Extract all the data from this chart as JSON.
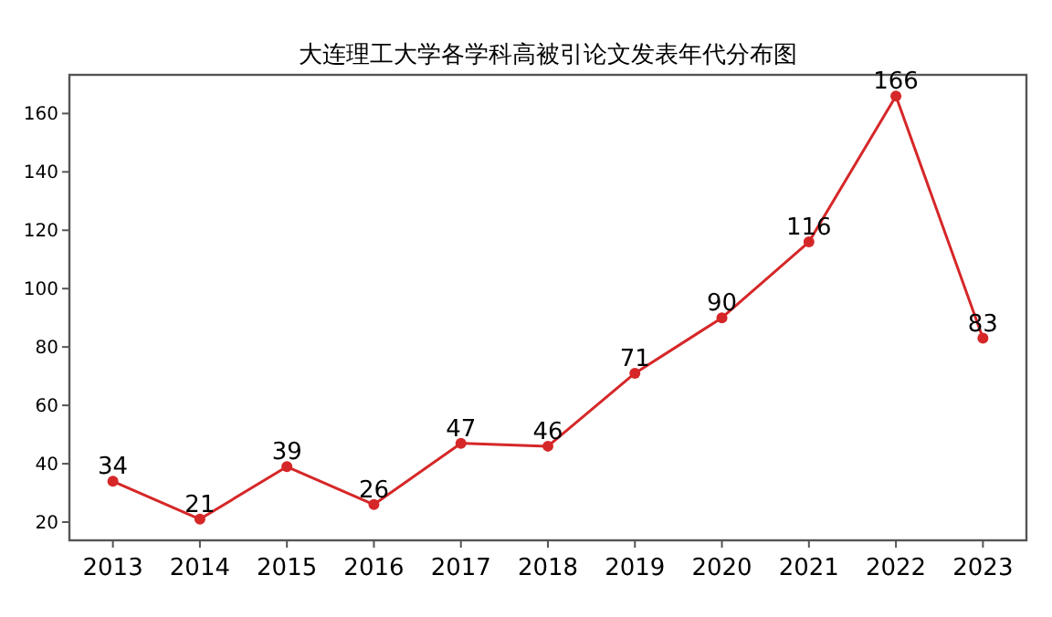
{
  "chart_data": {
    "type": "line",
    "title": "大连理工大学各学科高被引论文发表年代分布图",
    "categories": [
      "2013",
      "2014",
      "2015",
      "2016",
      "2017",
      "2018",
      "2019",
      "2020",
      "2021",
      "2022",
      "2023"
    ],
    "series": [
      {
        "color": "#d62728",
        "values": [
          34,
          21,
          39,
          26,
          47,
          46,
          71,
          90,
          116,
          166,
          83
        ]
      }
    ],
    "ylim": [
      13.75,
      173.25
    ],
    "yticks": [
      20,
      40,
      60,
      80,
      100,
      120,
      140,
      160
    ],
    "marker": "circle",
    "line_style": "solid",
    "data_labels": true,
    "grid": false
  }
}
